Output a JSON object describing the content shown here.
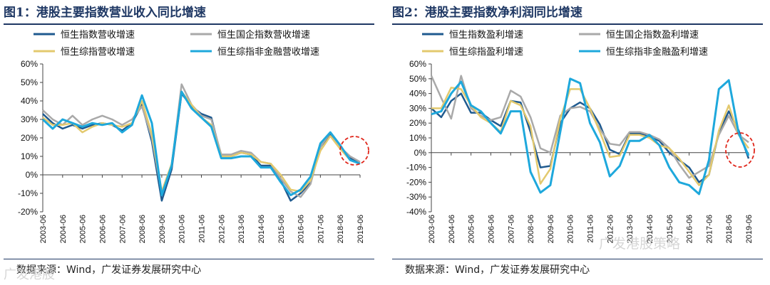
{
  "colors": {
    "hs": "#1f5a8f",
    "state": "#a9a9a9",
    "comp": "#e3c96e",
    "nonfin": "#1ea8dc",
    "title": "#1f3864",
    "circle": "#e0261b"
  },
  "source_text": "数据来源：Wind，广发证券发展研究中心",
  "watermark_right": "广发港股策略",
  "watermark_left": "广发港股",
  "chart_data": [
    {
      "type": "line",
      "title": "图1：港股主要指数营业收入同比增速",
      "categories": [
        "2003-06",
        "2003-12",
        "2004-06",
        "2004-12",
        "2005-06",
        "2005-12",
        "2006-06",
        "2006-12",
        "2007-06",
        "2007-12",
        "2008-06",
        "2008-12",
        "2009-06",
        "2009-12",
        "2010-06",
        "2010-12",
        "2011-06",
        "2011-12",
        "2012-06",
        "2012-12",
        "2013-06",
        "2013-12",
        "2014-06",
        "2014-12",
        "2015-06",
        "2015-12",
        "2016-06",
        "2016-12",
        "2017-06",
        "2017-12",
        "2018-06",
        "2018-12",
        "2019-06"
      ],
      "xtick_labels": [
        "2003-06",
        "2004-06",
        "2005-06",
        "2006-06",
        "2007-06",
        "2008-06",
        "2009-06",
        "2010-06",
        "2011-06",
        "2012-06",
        "2013-06",
        "2014-06",
        "2015-06",
        "2016-06",
        "2017-06",
        "2018-06",
        "2019-06"
      ],
      "ylim": [
        -20,
        60
      ],
      "yticks": [
        "-20%",
        "-10%",
        "0%",
        "10%",
        "20%",
        "30%",
        "40%",
        "50%",
        "60%"
      ],
      "series": [
        {
          "name": "恒生指数营收增速",
          "key": "hs",
          "values": [
            33,
            28,
            25,
            27,
            25,
            27,
            28,
            27,
            24,
            28,
            38,
            18,
            -14,
            3,
            44,
            37,
            33,
            31,
            10,
            10,
            12,
            11,
            5,
            5,
            -3,
            -14,
            -10,
            -4,
            15,
            22,
            15,
            9,
            6
          ]
        },
        {
          "name": "恒生国企指数营收增速",
          "key": "state",
          "values": [
            35,
            30,
            27,
            32,
            27,
            30,
            32,
            30,
            27,
            30,
            37,
            20,
            -10,
            5,
            49,
            38,
            32,
            30,
            11,
            11,
            13,
            12,
            7,
            6,
            -2,
            -9,
            -12,
            -5,
            15,
            23,
            15,
            10,
            7
          ]
        },
        {
          "name": "恒生综指营收增速",
          "key": "comp",
          "values": [
            31,
            27,
            27,
            28,
            23,
            26,
            28,
            27,
            26,
            28,
            40,
            22,
            -9,
            6,
            45,
            38,
            31,
            27,
            10,
            10,
            12,
            11,
            7,
            6,
            0,
            -8,
            -9,
            -3,
            13,
            21,
            14,
            8,
            6
          ]
        },
        {
          "name": "恒生综指非金融营收增速",
          "key": "nonfin",
          "values": [
            30,
            25,
            30,
            28,
            26,
            28,
            27,
            28,
            23,
            27,
            43,
            28,
            -11,
            5,
            45,
            36,
            31,
            26,
            9,
            9,
            10,
            10,
            4,
            4,
            -4,
            -11,
            -8,
            -1,
            17,
            23,
            16,
            8,
            6
          ]
        }
      ]
    },
    {
      "type": "line",
      "title": "图2：港股主要指数净利润同比增速",
      "categories": [
        "2003-06",
        "2003-12",
        "2004-06",
        "2004-12",
        "2005-06",
        "2005-12",
        "2006-06",
        "2006-12",
        "2007-06",
        "2007-12",
        "2008-06",
        "2008-12",
        "2009-06",
        "2009-12",
        "2010-06",
        "2010-12",
        "2011-06",
        "2011-12",
        "2012-06",
        "2012-12",
        "2013-06",
        "2013-12",
        "2014-06",
        "2014-12",
        "2015-06",
        "2015-12",
        "2016-06",
        "2016-12",
        "2017-06",
        "2017-12",
        "2018-06",
        "2018-12",
        "2019-06"
      ],
      "xtick_labels": [
        "2003-06",
        "2004-06",
        "2005-06",
        "2006-06",
        "2007-06",
        "2008-06",
        "2009-06",
        "2010-06",
        "2011-06",
        "2012-06",
        "2013-06",
        "2014-06",
        "2015-06",
        "2016-06",
        "2017-06",
        "2018-06",
        "2019-06"
      ],
      "ylim": [
        -40,
        60
      ],
      "yticks": [
        "-40%",
        "-30%",
        "-20%",
        "-10%",
        "0%",
        "10%",
        "20%",
        "30%",
        "40%",
        "50%",
        "60%"
      ],
      "series": [
        {
          "name": "恒生指数盈利增速",
          "key": "hs",
          "values": [
            30,
            24,
            35,
            40,
            27,
            27,
            22,
            18,
            35,
            34,
            14,
            -10,
            -9,
            20,
            30,
            34,
            30,
            19,
            2,
            -1,
            13,
            13,
            11,
            8,
            0,
            -5,
            -10,
            -20,
            -15,
            14,
            28,
            15,
            -4
          ]
        },
        {
          "name": "恒生国企指数盈利增速",
          "key": "state",
          "values": [
            52,
            37,
            23,
            52,
            30,
            25,
            22,
            24,
            42,
            38,
            24,
            3,
            0,
            25,
            30,
            31,
            28,
            16,
            6,
            5,
            14,
            14,
            12,
            9,
            3,
            -8,
            -17,
            -13,
            -9,
            12,
            25,
            12,
            7
          ]
        },
        {
          "name": "恒生综指盈利增速",
          "key": "comp",
          "values": [
            30,
            30,
            44,
            43,
            32,
            24,
            20,
            14,
            35,
            32,
            18,
            -21,
            -11,
            23,
            43,
            43,
            30,
            14,
            -3,
            -2,
            12,
            12,
            10,
            5,
            3,
            -4,
            -13,
            -22,
            -15,
            15,
            32,
            12,
            3
          ]
        },
        {
          "name": "恒生综指非金融盈利增速",
          "key": "nonfin",
          "values": [
            26,
            28,
            40,
            48,
            32,
            28,
            20,
            13,
            28,
            28,
            -13,
            -27,
            -22,
            14,
            50,
            47,
            20,
            7,
            -16,
            -9,
            8,
            8,
            12,
            5,
            -10,
            -20,
            -22,
            -28,
            -5,
            43,
            49,
            13,
            -2
          ]
        }
      ]
    }
  ],
  "panels": [
    {
      "title": "图1：港股主要指数营业收入同比增速",
      "legend": [
        "恒生指数营收增速",
        "恒生国企指数营收增速",
        "恒生综指营收增速",
        "恒生综指非金融营收增速"
      ]
    },
    {
      "title": "图2：港股主要指数净利润同比增速",
      "legend": [
        "恒生指数盈利增速",
        "恒生国企指数盈利增速",
        "恒生综指盈利增速",
        "恒生综指非金融盈利增速"
      ]
    }
  ]
}
